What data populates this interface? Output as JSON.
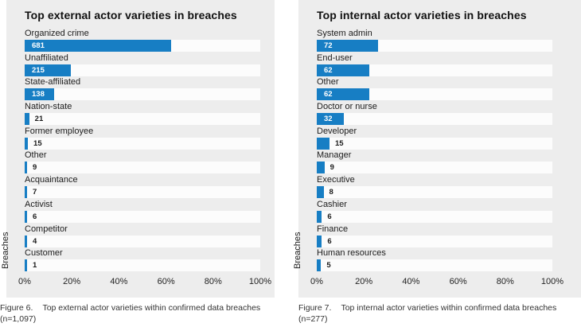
{
  "colors": {
    "bar": "#177EC4",
    "panel_bg": "#EDEDED",
    "track_bg": "#FCFCFC"
  },
  "chart_data": [
    {
      "type": "bar",
      "orientation": "horizontal",
      "title": "Top external actor varieties in breaches",
      "ylabel": "Breaches",
      "xlabel": "",
      "xlim_percent": [
        0,
        100
      ],
      "xticks": [
        "0%",
        "20%",
        "40%",
        "60%",
        "80%",
        "100%"
      ],
      "grid": false,
      "n": 1097,
      "categories": [
        "Organized crime",
        "Unaffiliated",
        "State-affiliated",
        "Nation-state",
        "Former employee",
        "Other",
        "Acquaintance",
        "Activist",
        "Competitor",
        "Customer"
      ],
      "values": [
        681,
        215,
        138,
        21,
        15,
        9,
        7,
        6,
        4,
        1
      ],
      "figure_label": "Figure 6.",
      "caption": "Top external actor varieties within confirmed data breaches",
      "n_label": "(n=1,097)"
    },
    {
      "type": "bar",
      "orientation": "horizontal",
      "title": "Top internal actor varieties in breaches",
      "ylabel": "Breaches",
      "xlabel": "",
      "xlim_percent": [
        0,
        100
      ],
      "xticks": [
        "0%",
        "20%",
        "40%",
        "60%",
        "80%",
        "100%"
      ],
      "grid": false,
      "n": 277,
      "categories": [
        "System admin",
        "End-user",
        "Other",
        "Doctor or nurse",
        "Developer",
        "Manager",
        "Executive",
        "Cashier",
        "Finance",
        "Human resources"
      ],
      "values": [
        72,
        62,
        62,
        32,
        15,
        9,
        8,
        6,
        6,
        5
      ],
      "figure_label": "Figure 7.",
      "caption": "Top internal actor varieties within confirmed data breaches",
      "n_label": "(n=277)"
    }
  ]
}
